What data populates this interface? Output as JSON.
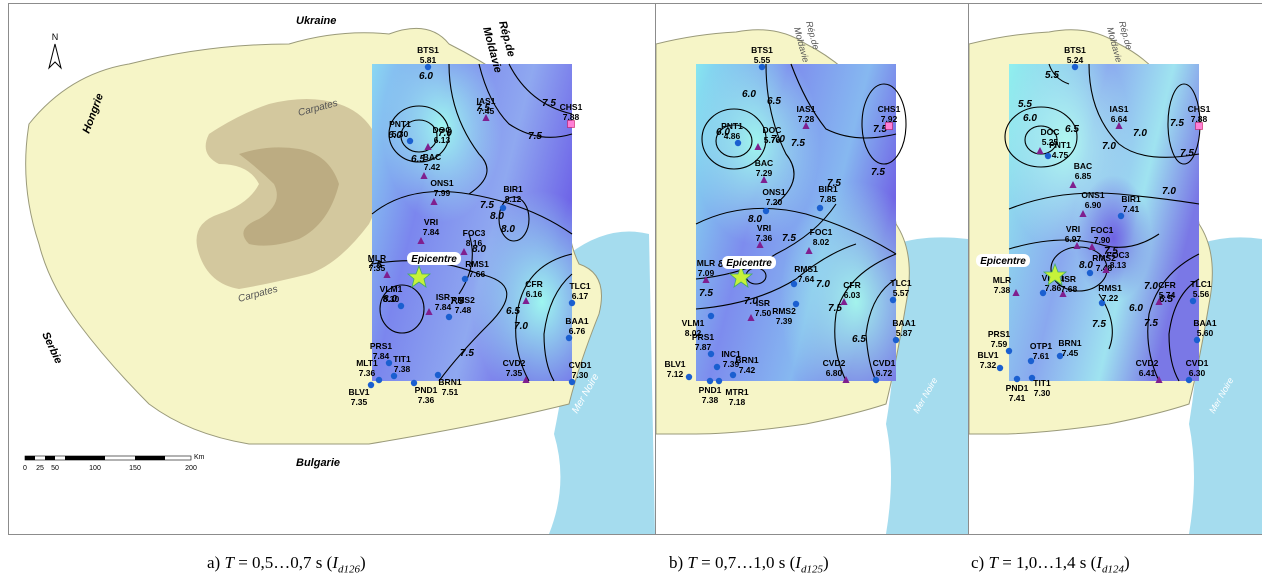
{
  "countries": {
    "ukraine": "Ukraine",
    "moldova_line1": "Rép.de",
    "moldova_line2": "Moldavie",
    "hungary": "Hongrie",
    "serbia": "Serbie",
    "bulgaria": "Bulgarie",
    "black_sea": "Mer Noire"
  },
  "mountains_label": "Carpates",
  "epicentre_label": "Epicentre",
  "north_letter": "N",
  "scale_bar": {
    "ticks": [
      "0",
      "25",
      "50",
      "100",
      "150",
      "200"
    ],
    "unit": "Km"
  },
  "colors": {
    "land": "#f6f5c7",
    "mountain": "#cdbf96",
    "sea": "#a5dcee",
    "grid_low": "#7ff0ee",
    "grid_high": "#6f66e8",
    "triangle": "#7f1f8f",
    "circle": "#1a5fd0",
    "square": "#ff7fd6",
    "star": "#c6f23a"
  },
  "panels": [
    {
      "caption_prefix": "a) ",
      "T_symbol": "T",
      "caption_range": " = 0,5…0,7 s (",
      "I_symbol": "I",
      "sub": "d126",
      "caption_suffix": ")",
      "stations": [
        {
          "name": "BTS1",
          "value": "5.81",
          "marker": "circle"
        },
        {
          "name": "IAS1",
          "value": "7.45",
          "marker": "triangle"
        },
        {
          "name": "CHS1",
          "value": "7.88",
          "marker": "square"
        },
        {
          "name": "PNT1",
          "value": "5.30",
          "marker": "circle"
        },
        {
          "name": "DOC",
          "value": "6.13",
          "marker": "triangle"
        },
        {
          "name": "BAC",
          "value": "7.42",
          "marker": "triangle"
        },
        {
          "name": "ONS1",
          "value": "7.99",
          "marker": "triangle"
        },
        {
          "name": "BIR1",
          "value": "8.12",
          "marker": "circle"
        },
        {
          "name": "VRI",
          "value": "7.84",
          "marker": "triangle"
        },
        {
          "name": "FOC3",
          "value": "8.16",
          "marker": "triangle"
        },
        {
          "name": "MLR",
          "value": "7.35",
          "marker": "triangle"
        },
        {
          "name": "RMS1",
          "value": "7.66",
          "marker": "circle"
        },
        {
          "name": "VLM1",
          "value": "8.30",
          "marker": "circle"
        },
        {
          "name": "ISR",
          "value": "7.84",
          "marker": "triangle"
        },
        {
          "name": "RMS2",
          "value": "7.48",
          "marker": "circle"
        },
        {
          "name": "CFR",
          "value": "6.16",
          "marker": "triangle"
        },
        {
          "name": "TLC1",
          "value": "6.17",
          "marker": "circle"
        },
        {
          "name": "BAA1",
          "value": "6.76",
          "marker": "circle"
        },
        {
          "name": "PRS1",
          "value": "7.84",
          "marker": "circle"
        },
        {
          "name": "TIT1",
          "value": "7.38",
          "marker": "circle"
        },
        {
          "name": "MLT1",
          "value": "7.36",
          "marker": "circle"
        },
        {
          "name": "BLV1",
          "value": "7.35",
          "marker": "circle"
        },
        {
          "name": "PND1",
          "value": "7.36",
          "marker": "circle"
        },
        {
          "name": "BRN1",
          "value": "7.51",
          "marker": "circle"
        },
        {
          "name": "CVD2",
          "value": "7.35",
          "marker": "triangle"
        },
        {
          "name": "CVD1",
          "value": "7.30",
          "marker": "circle"
        }
      ],
      "contour_labels": [
        "6.0",
        "6.0",
        "6.5",
        "7.0",
        "7.5",
        "7.5",
        "7.5",
        "7.5",
        "8.0",
        "8.0",
        "8.0",
        "7.5",
        "8.0",
        "6.5",
        "7.0",
        "7.5",
        "7.5"
      ]
    },
    {
      "caption_prefix": "b) ",
      "T_symbol": "T",
      "caption_range": " = 0,7…1,0 s (",
      "I_symbol": "I",
      "sub": "d125",
      "caption_suffix": ")",
      "stations": [
        {
          "name": "BTS1",
          "value": "5.55",
          "marker": "circle"
        },
        {
          "name": "IAS1",
          "value": "7.28",
          "marker": "triangle"
        },
        {
          "name": "CHS1",
          "value": "7.92",
          "marker": "square"
        },
        {
          "name": "PNT1",
          "value": "4.86",
          "marker": "circle"
        },
        {
          "name": "DOC",
          "value": "5.76",
          "marker": "triangle"
        },
        {
          "name": "BAC",
          "value": "7.29",
          "marker": "triangle"
        },
        {
          "name": "ONS1",
          "value": "7.20",
          "marker": "circle"
        },
        {
          "name": "BIR1",
          "value": "7.85",
          "marker": "circle"
        },
        {
          "name": "VRI",
          "value": "7.36",
          "marker": "triangle"
        },
        {
          "name": "FOC1",
          "value": "8.02",
          "marker": "triangle"
        },
        {
          "name": "MLR",
          "value": "7.09",
          "marker": "triangle"
        },
        {
          "name": "RMS1",
          "value": "7.64",
          "marker": "circle"
        },
        {
          "name": "VLM1",
          "value": "8.02",
          "marker": "circle"
        },
        {
          "name": "ISR",
          "value": "7.50",
          "marker": "triangle"
        },
        {
          "name": "RMS2",
          "value": "7.39",
          "marker": "circle"
        },
        {
          "name": "CFR",
          "value": "6.03",
          "marker": "triangle"
        },
        {
          "name": "TLC1",
          "value": "5.57",
          "marker": "circle"
        },
        {
          "name": "BAA1",
          "value": "5.87",
          "marker": "circle"
        },
        {
          "name": "PRS1",
          "value": "7.87",
          "marker": "circle"
        },
        {
          "name": "INC1",
          "value": "7.39",
          "marker": "circle"
        },
        {
          "name": "BRN1",
          "value": "7.42",
          "marker": "circle"
        },
        {
          "name": "BLV1",
          "value": "7.12",
          "marker": "circle"
        },
        {
          "name": "PND1",
          "value": "7.38",
          "marker": "circle"
        },
        {
          "name": "MTR1",
          "value": "7.18",
          "marker": "circle"
        },
        {
          "name": "CVD2",
          "value": "6.80",
          "marker": "triangle"
        },
        {
          "name": "CVD1",
          "value": "6.72",
          "marker": "circle"
        }
      ],
      "contour_labels": [
        "6.0",
        "6.0",
        "6.5",
        "7.0",
        "7.5",
        "7.5",
        "7.5",
        "7.5",
        "8.0",
        "7.5",
        "8.0",
        "7.5",
        "7.0",
        "6.5",
        "7.0",
        "7.5"
      ]
    },
    {
      "caption_prefix": "c) ",
      "T_symbol": "T",
      "caption_range": " = 1,0…1,4 s (",
      "I_symbol": "I",
      "sub": "d124",
      "caption_suffix": ")",
      "stations": [
        {
          "name": "BTS1",
          "value": "5.24",
          "marker": "circle"
        },
        {
          "name": "IAS1",
          "value": "6.64",
          "marker": "triangle"
        },
        {
          "name": "CHS1",
          "value": "7.88",
          "marker": "square"
        },
        {
          "name": "DOC",
          "value": "5.25",
          "marker": "triangle"
        },
        {
          "name": "PNT1",
          "value": "4.75",
          "marker": "circle"
        },
        {
          "name": "BAC",
          "value": "6.85",
          "marker": "triangle"
        },
        {
          "name": "ONS1",
          "value": "6.90",
          "marker": "triangle"
        },
        {
          "name": "BIR1",
          "value": "7.41",
          "marker": "circle"
        },
        {
          "name": "VRI",
          "value": "6.97",
          "marker": "triangle"
        },
        {
          "name": "FOC1",
          "value": "7.90",
          "marker": "triangle"
        },
        {
          "name": "RMS2",
          "value": "7.48",
          "marker": "circle"
        },
        {
          "name": "FOC3",
          "value": "8.13",
          "marker": "triangle"
        },
        {
          "name": "MLR",
          "value": "7.38",
          "marker": "triangle"
        },
        {
          "name": "VLM1",
          "value": "7.86",
          "marker": "circle"
        },
        {
          "name": "ISR",
          "value": "7.68",
          "marker": "triangle"
        },
        {
          "name": "RMS1",
          "value": "7.22",
          "marker": "circle"
        },
        {
          "name": "CFR",
          "value": "5.74",
          "marker": "triangle"
        },
        {
          "name": "TLC1",
          "value": "5.56",
          "marker": "circle"
        },
        {
          "name": "BAA1",
          "value": "5.60",
          "marker": "circle"
        },
        {
          "name": "PRS1",
          "value": "7.59",
          "marker": "circle"
        },
        {
          "name": "OTP1",
          "value": "7.61",
          "marker": "circle"
        },
        {
          "name": "BRN1",
          "value": "7.45",
          "marker": "circle"
        },
        {
          "name": "BLV1",
          "value": "7.32",
          "marker": "circle"
        },
        {
          "name": "PND1",
          "value": "7.41",
          "marker": "circle"
        },
        {
          "name": "TIT1",
          "value": "7.30",
          "marker": "circle"
        },
        {
          "name": "CVD2",
          "value": "6.41",
          "marker": "triangle"
        },
        {
          "name": "CVD1",
          "value": "6.30",
          "marker": "circle"
        }
      ],
      "contour_labels": [
        "5.5",
        "5.5",
        "6.0",
        "6.5",
        "7.0",
        "7.0",
        "7.5",
        "7.5",
        "7.0",
        "7.5",
        "8.0",
        "7.5",
        "6.0",
        "6.5",
        "7.0",
        "7.5"
      ]
    }
  ]
}
